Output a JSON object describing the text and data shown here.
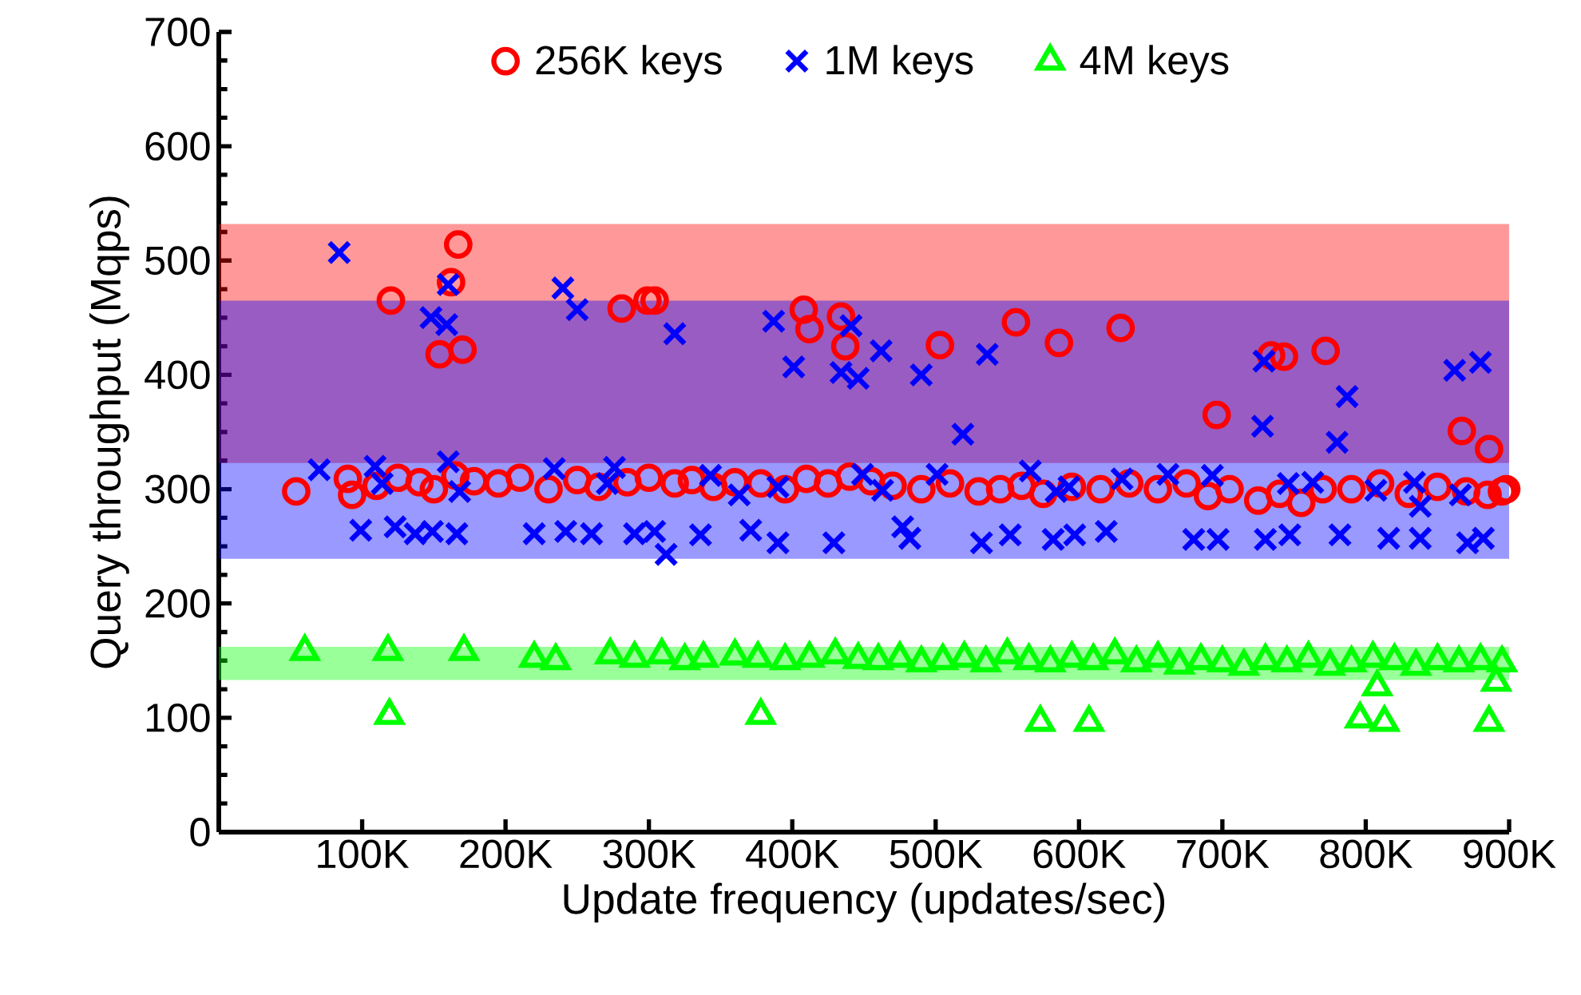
{
  "chart_data": {
    "type": "scatter",
    "xlabel": "Update frequency (updates/sec)",
    "ylabel": "Query throughput (Mqps)",
    "xlim": [
      0,
      900000
    ],
    "ylim": [
      0,
      700
    ],
    "xticks": [
      {
        "value": 100000,
        "label": "100K"
      },
      {
        "value": 200000,
        "label": "200K"
      },
      {
        "value": 300000,
        "label": "300K"
      },
      {
        "value": 400000,
        "label": "400K"
      },
      {
        "value": 500000,
        "label": "500K"
      },
      {
        "value": 600000,
        "label": "600K"
      },
      {
        "value": 700000,
        "label": "700K"
      },
      {
        "value": 800000,
        "label": "800K"
      },
      {
        "value": 900000,
        "label": "900K"
      }
    ],
    "yticks": [
      0,
      100,
      200,
      300,
      400,
      500,
      600,
      700
    ],
    "grid": false,
    "legend": "top",
    "bands": [
      {
        "axis": "y",
        "from": 323,
        "to": 532,
        "color": "#ff0000"
      },
      {
        "axis": "y",
        "from": 239,
        "to": 465,
        "color": "#0000ff"
      },
      {
        "axis": "y",
        "from": 133,
        "to": 162,
        "color": "#00ff00"
      }
    ],
    "series": [
      {
        "name": "256K keys",
        "color": "#ff0000",
        "marker": "circle",
        "x": [
          54000,
          90000,
          93000,
          110000,
          125000,
          140000,
          150000,
          165000,
          178000,
          195000,
          210000,
          230000,
          250000,
          265000,
          285000,
          300000,
          318000,
          330000,
          345000,
          360000,
          378000,
          395000,
          410000,
          425000,
          440000,
          455000,
          470000,
          490000,
          510000,
          530000,
          545000,
          560000,
          575000,
          595000,
          615000,
          635000,
          655000,
          675000,
          690000,
          705000,
          725000,
          740000,
          755000,
          770000,
          790000,
          810000,
          830000,
          850000,
          870000,
          885000,
          895000,
          898000,
          120000,
          154000,
          162000,
          167000,
          170000,
          281000,
          299000,
          304000,
          408000,
          412000,
          434000,
          437000,
          503000,
          556000,
          586000,
          629000,
          696000,
          734000,
          743000,
          772000,
          867000,
          886000
        ],
        "values": [
          298,
          309,
          295,
          303,
          310,
          306,
          300,
          312,
          307,
          305,
          310,
          300,
          308,
          302,
          306,
          310,
          305,
          308,
          302,
          306,
          305,
          300,
          309,
          305,
          311,
          307,
          303,
          300,
          305,
          298,
          300,
          303,
          296,
          302,
          300,
          305,
          300,
          305,
          294,
          300,
          290,
          296,
          288,
          300,
          300,
          305,
          296,
          302,
          298,
          295,
          298,
          300,
          465,
          418,
          481,
          514,
          422,
          458,
          465,
          465,
          457,
          440,
          451,
          425,
          426,
          446,
          428,
          441,
          365,
          417,
          416,
          421,
          351,
          335
        ]
      },
      {
        "name": "1M keys",
        "color": "#0000ff",
        "marker": "cross",
        "x": [
          84000,
          160000,
          148000,
          159000,
          240000,
          250000,
          70000,
          109000,
          114000,
          160000,
          168000,
          234000,
          276000,
          271000,
          99000,
          123000,
          137000,
          149000,
          166000,
          220000,
          242000,
          260000,
          290000,
          318000,
          387000,
          401000,
          441000,
          434000,
          446000,
          462000,
          490000,
          519000,
          536000,
          343000,
          363000,
          390000,
          449000,
          463000,
          501000,
          566000,
          584000,
          304000,
          312000,
          336000,
          371000,
          390000,
          429000,
          477000,
          482000,
          532000,
          552000,
          582000,
          729000,
          880000,
          862000,
          787000,
          780000,
          728000,
          593000,
          630000,
          662000,
          693000,
          746000,
          763000,
          807000,
          834000,
          866000,
          838000,
          597000,
          619000,
          680000,
          697000,
          730000,
          747000,
          782000,
          816000,
          838000,
          871000,
          882000
        ],
        "values": [
          507,
          479,
          450,
          444,
          476,
          457,
          317,
          320,
          305,
          324,
          298,
          318,
          319,
          305,
          264,
          267,
          261,
          263,
          261,
          261,
          263,
          261,
          261,
          436,
          447,
          407,
          443,
          402,
          397,
          421,
          400,
          348,
          418,
          312,
          295,
          302,
          313,
          299,
          313,
          316,
          298,
          263,
          243,
          260,
          264,
          253,
          253,
          267,
          257,
          253,
          260,
          256,
          412,
          411,
          404,
          381,
          341,
          355,
          302,
          309,
          313,
          312,
          305,
          306,
          299,
          306,
          295,
          285,
          260,
          263,
          256,
          256,
          256,
          260,
          260,
          257,
          257,
          253,
          257
        ]
      },
      {
        "name": "4M keys",
        "color": "#00ff00",
        "marker": "triangle",
        "x": [
          60000,
          118000,
          171000,
          220000,
          235000,
          273000,
          290000,
          309000,
          325000,
          338000,
          360000,
          376000,
          395000,
          412000,
          430000,
          446000,
          460000,
          475000,
          490000,
          505000,
          520000,
          535000,
          550000,
          565000,
          580000,
          595000,
          610000,
          625000,
          640000,
          655000,
          670000,
          685000,
          700000,
          715000,
          730000,
          745000,
          760000,
          775000,
          790000,
          805000,
          820000,
          835000,
          850000,
          865000,
          880000,
          895000,
          119000,
          378000,
          573000,
          607000,
          796000,
          813000,
          886000,
          808000,
          891000
        ],
        "values": [
          158,
          158,
          158,
          152,
          150,
          155,
          152,
          155,
          150,
          152,
          154,
          152,
          150,
          152,
          155,
          151,
          150,
          152,
          148,
          150,
          152,
          148,
          155,
          150,
          148,
          152,
          150,
          155,
          148,
          152,
          146,
          150,
          148,
          145,
          150,
          148,
          152,
          145,
          148,
          152,
          150,
          145,
          150,
          148,
          150,
          148,
          102,
          102,
          96,
          96,
          99,
          96,
          96,
          127,
          131
        ]
      }
    ]
  }
}
